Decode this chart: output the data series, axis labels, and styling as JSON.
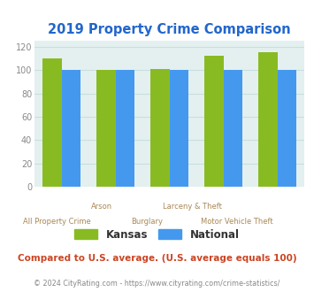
{
  "title": "2019 Property Crime Comparison",
  "title_color": "#2266cc",
  "categories": [
    "All Property Crime",
    "Arson",
    "Burglary",
    "Larceny & Theft",
    "Motor Vehicle Theft"
  ],
  "kansas_values": [
    110,
    100,
    101,
    112,
    115
  ],
  "national_values": [
    100,
    100,
    100,
    100,
    100
  ],
  "kansas_color": "#88bb22",
  "national_color": "#4499ee",
  "plot_bg_color": "#e4f0f0",
  "ylim": [
    0,
    125
  ],
  "yticks": [
    0,
    20,
    40,
    60,
    80,
    100,
    120
  ],
  "ylabel_color": "#888888",
  "xlabel_color": "#aa8855",
  "legend_kansas": "Kansas",
  "legend_national": "National",
  "note_text": "Compared to U.S. average. (U.S. average equals 100)",
  "note_color": "#cc4422",
  "footer_text": "© 2024 CityRating.com - https://www.cityrating.com/crime-statistics/",
  "footer_color": "#888888",
  "bar_width": 0.35,
  "grid_color": "#c8dede"
}
